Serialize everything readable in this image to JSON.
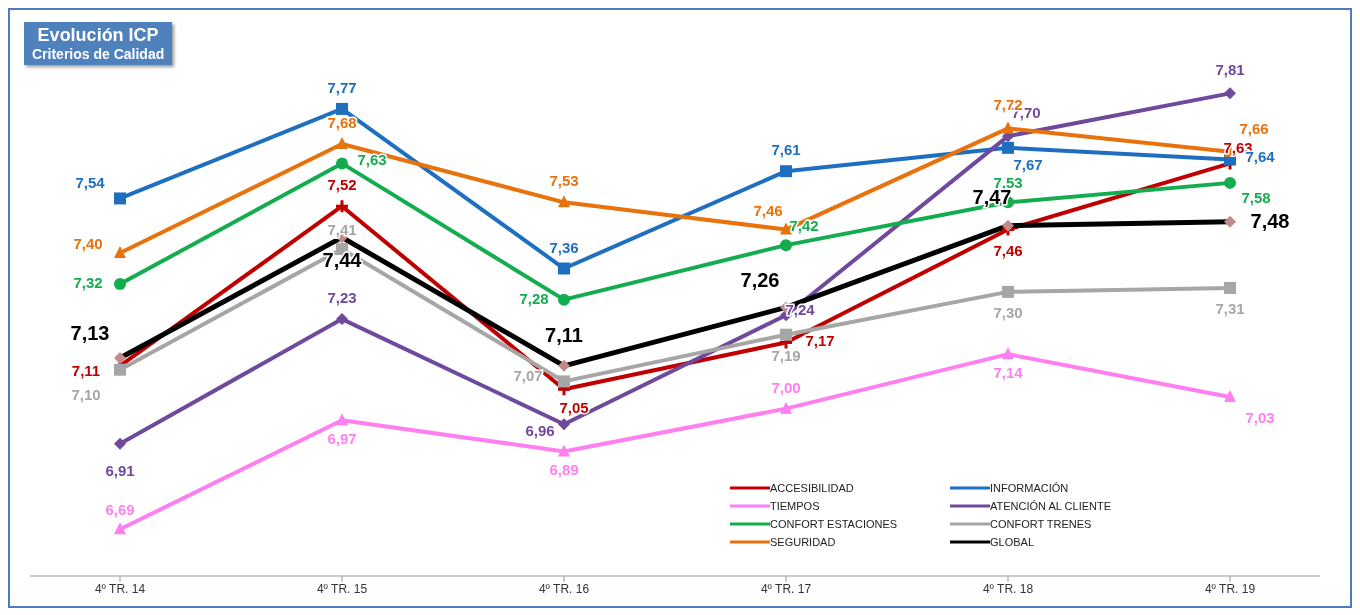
{
  "chart_data": {
    "type": "line",
    "title": "Evolución ICP",
    "subtitle": "Criterios de Calidad",
    "categories": [
      "4º TR. 14",
      "4º TR. 15",
      "4º TR. 16",
      "4º TR. 17",
      "4º TR. 18",
      "4º TR. 19"
    ],
    "legend": "bottom right",
    "line_style": "solid",
    "series": [
      {
        "name": "ACCESIBILIDAD",
        "color": "#c00000",
        "marker": "cross",
        "values": [
          7.11,
          7.52,
          7.05,
          7.17,
          7.46,
          7.63
        ],
        "value_labels": [
          "7,11",
          "7,52",
          "7,05",
          "7,17",
          "7,46",
          "7,63"
        ]
      },
      {
        "name": "INFORMACIÓN",
        "color": "#1f6fc1",
        "marker": "square",
        "values": [
          7.54,
          7.77,
          7.36,
          7.61,
          7.67,
          7.64
        ],
        "value_labels": [
          "7,54",
          "7,77",
          "7,36",
          "7,61",
          "7,67",
          "7,64"
        ]
      },
      {
        "name": "TIEMPOS",
        "color": "#ff7ff0",
        "marker": "triangle",
        "values": [
          6.69,
          6.97,
          6.89,
          7.0,
          7.14,
          7.03
        ],
        "value_labels": [
          "6,69",
          "6,97",
          "6,89",
          "7,00",
          "7,14",
          "7,03"
        ]
      },
      {
        "name": "ATENCIÓN AL CLIENTE",
        "color": "#6f4a9c",
        "marker": "diamond",
        "values": [
          6.91,
          7.23,
          6.96,
          7.24,
          7.7,
          7.81
        ],
        "value_labels": [
          "6,91",
          "7,23",
          "6,96",
          "7,24",
          "7,70",
          "7,81"
        ]
      },
      {
        "name": "CONFORT ESTACIONES",
        "color": "#13ad4f",
        "marker": "circle",
        "values": [
          7.32,
          7.63,
          7.28,
          7.42,
          7.53,
          7.58
        ],
        "value_labels": [
          "7,32",
          "7,63",
          "7,28",
          "7,42",
          "7,53",
          "7,58"
        ]
      },
      {
        "name": "CONFORT TRENES",
        "color": "#a6a6a6",
        "marker": "square",
        "values": [
          7.1,
          7.41,
          7.07,
          7.19,
          7.3,
          7.31
        ],
        "value_labels": [
          "7,10",
          "7,41",
          "7,07",
          "7,19",
          "7,30",
          "7,31"
        ]
      },
      {
        "name": "SEGURIDAD",
        "color": "#e8720c",
        "marker": "triangle",
        "values": [
          7.4,
          7.68,
          7.53,
          7.46,
          7.72,
          7.66
        ],
        "value_labels": [
          "7,40",
          "7,68",
          "7,53",
          "7,46",
          "7,72",
          "7,66"
        ]
      },
      {
        "name": "GLOBAL",
        "color": "#000000",
        "marker": "diamond",
        "values": [
          7.13,
          7.44,
          7.11,
          7.26,
          7.47,
          7.48
        ],
        "value_labels": [
          "7,13",
          "7,44",
          "7,11",
          "7,26",
          "7,47",
          "7,48"
        ]
      }
    ]
  }
}
